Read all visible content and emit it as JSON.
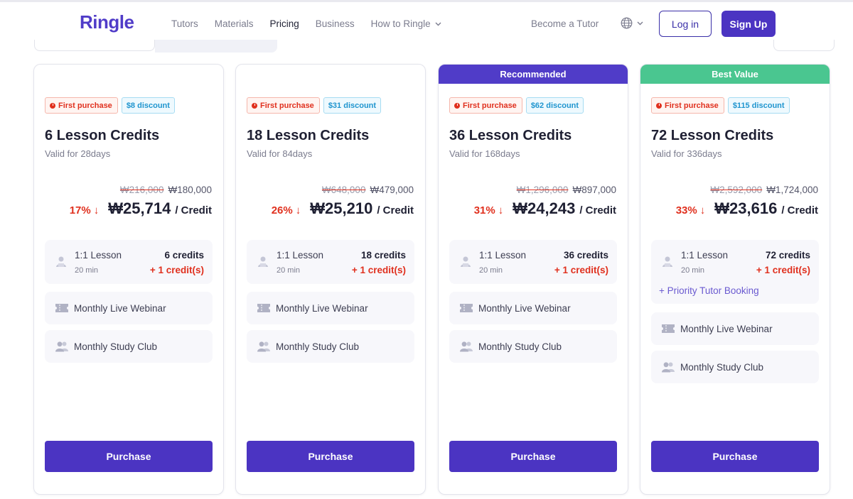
{
  "header": {
    "logo": "Ringle",
    "nav": [
      "Tutors",
      "Materials",
      "Pricing",
      "Business",
      "How to Ringle"
    ],
    "active_nav": "Pricing",
    "become_tutor": "Become a Tutor",
    "login": "Log in",
    "signup": "Sign Up"
  },
  "colors": {
    "brand": "#4b34c2",
    "recommended": "#503cc8",
    "best_value": "#4ac690",
    "discount_red": "#e0301e",
    "discount_blue": "#1f95cf"
  },
  "plans": [
    {
      "ribbon": "",
      "first_purchase": "First purchase",
      "discount": "$8 discount",
      "title": "6 Lesson Credits",
      "valid": "Valid for 28days",
      "original_price": "₩216,000",
      "price": "₩180,000",
      "percent": "17%",
      "per_credit": "₩25,714",
      "per_unit": "/ Credit",
      "lesson_name": "1:1 Lesson",
      "lesson_duration": "20 min",
      "credits": "6 credits",
      "bonus": "+ 1 credit(s)",
      "priority": "",
      "webinar": "Monthly Live Webinar",
      "study_club": "Monthly Study Club",
      "purchase": "Purchase"
    },
    {
      "ribbon": "",
      "first_purchase": "First purchase",
      "discount": "$31 discount",
      "title": "18 Lesson Credits",
      "valid": "Valid for 84days",
      "original_price": "₩648,000",
      "price": "₩479,000",
      "percent": "26%",
      "per_credit": "₩25,210",
      "per_unit": "/ Credit",
      "lesson_name": "1:1 Lesson",
      "lesson_duration": "20 min",
      "credits": "18 credits",
      "bonus": "+ 1 credit(s)",
      "priority": "",
      "webinar": "Monthly Live Webinar",
      "study_club": "Monthly Study Club",
      "purchase": "Purchase"
    },
    {
      "ribbon": "Recommended",
      "first_purchase": "First purchase",
      "discount": "$62 discount",
      "title": "36 Lesson Credits",
      "valid": "Valid for 168days",
      "original_price": "₩1,296,000",
      "price": "₩897,000",
      "percent": "31%",
      "per_credit": "₩24,243",
      "per_unit": "/ Credit",
      "lesson_name": "1:1 Lesson",
      "lesson_duration": "20 min",
      "credits": "36 credits",
      "bonus": "+ 1 credit(s)",
      "priority": "",
      "webinar": "Monthly Live Webinar",
      "study_club": "Monthly Study Club",
      "purchase": "Purchase"
    },
    {
      "ribbon": "Best Value",
      "first_purchase": "First purchase",
      "discount": "$115 discount",
      "title": "72 Lesson Credits",
      "valid": "Valid for 336days",
      "original_price": "₩2,592,000",
      "price": "₩1,724,000",
      "percent": "33%",
      "per_credit": "₩23,616",
      "per_unit": "/ Credit",
      "lesson_name": "1:1 Lesson",
      "lesson_duration": "20 min",
      "credits": "72 credits",
      "bonus": "+ 1 credit(s)",
      "priority": "+ Priority Tutor Booking",
      "webinar": "Monthly Live Webinar",
      "study_club": "Monthly Study Club",
      "purchase": "Purchase"
    }
  ]
}
